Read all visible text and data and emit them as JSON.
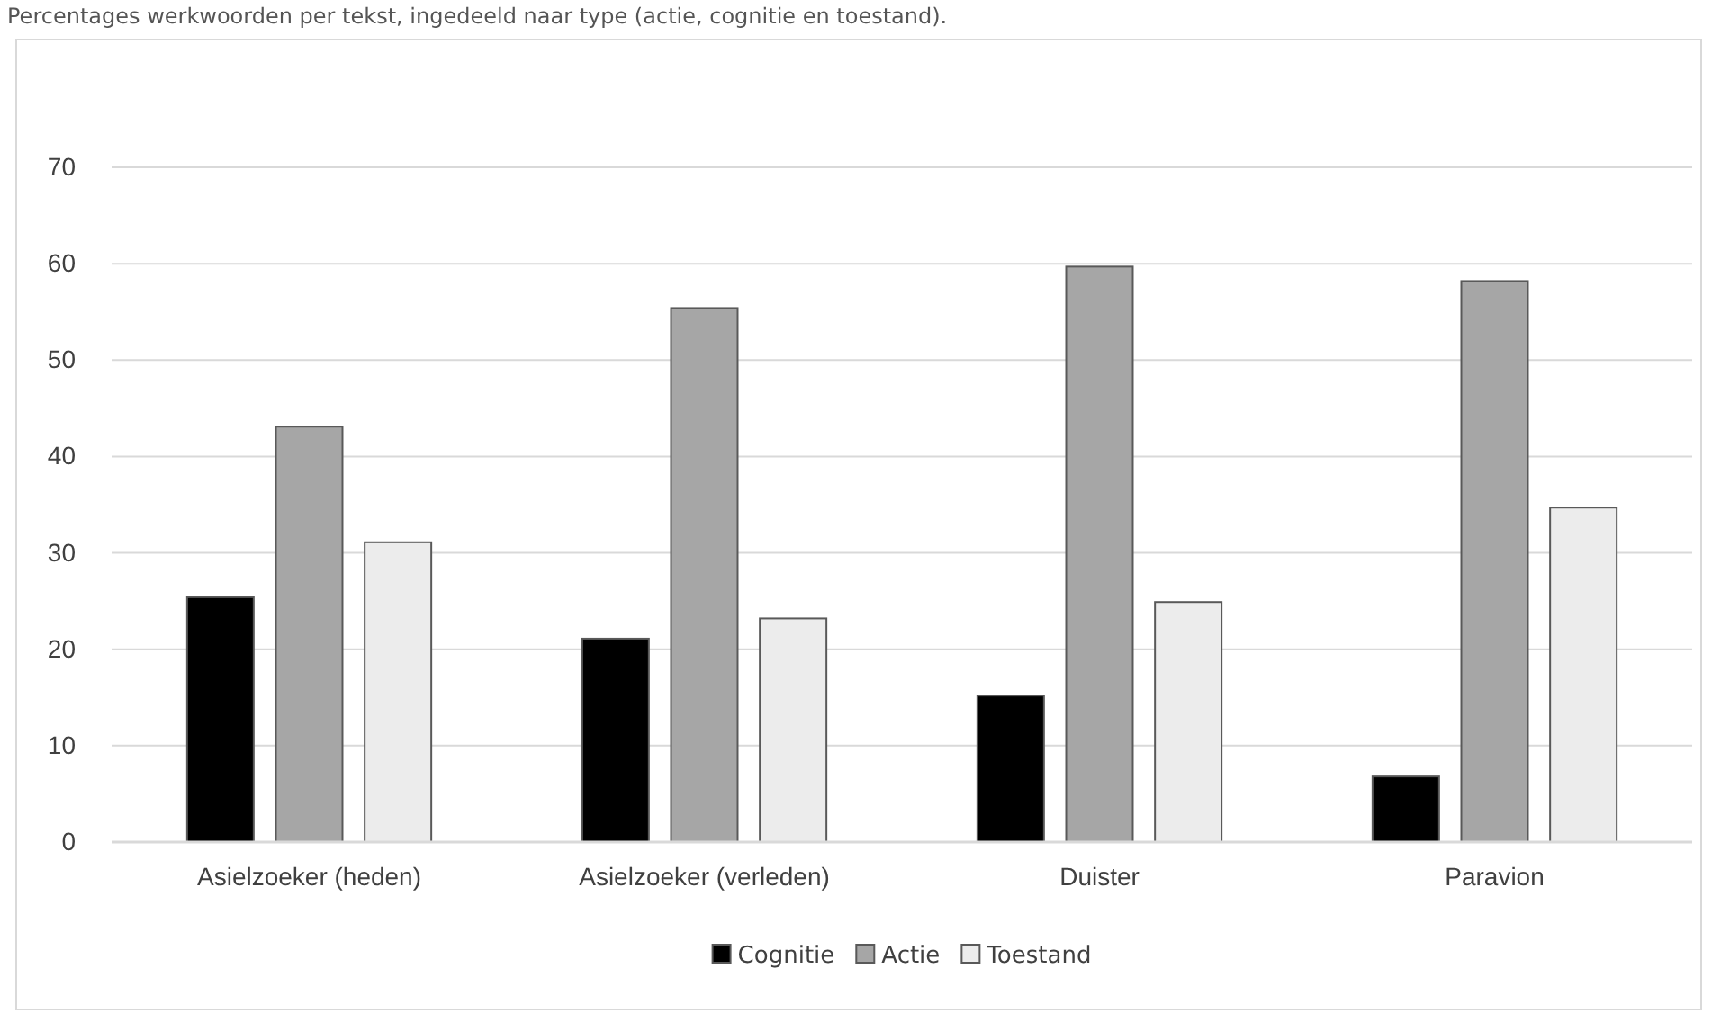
{
  "chart_data": {
    "type": "bar",
    "title": "Percentages werkwoorden per tekst, ingedeeld naar type (actie, cognitie en toestand).",
    "categories": [
      "Asielzoeker (heden)",
      "Asielzoeker (verleden)",
      "Duister",
      "Paravion"
    ],
    "series": [
      {
        "name": "Cognitie",
        "color": "#000000",
        "values": [
          25.4,
          21.1,
          15.2,
          6.8
        ]
      },
      {
        "name": "Actie",
        "color": "#a6a6a6",
        "values": [
          43.1,
          55.4,
          59.7,
          58.2
        ]
      },
      {
        "name": "Toestand",
        "color": "#ececec",
        "values": [
          31.1,
          23.2,
          24.9,
          34.7
        ]
      }
    ],
    "ylim": [
      0,
      70
    ],
    "yticks": [
      0,
      10,
      20,
      30,
      40,
      50,
      60,
      70
    ],
    "grid": "y",
    "legend": "bottom"
  }
}
